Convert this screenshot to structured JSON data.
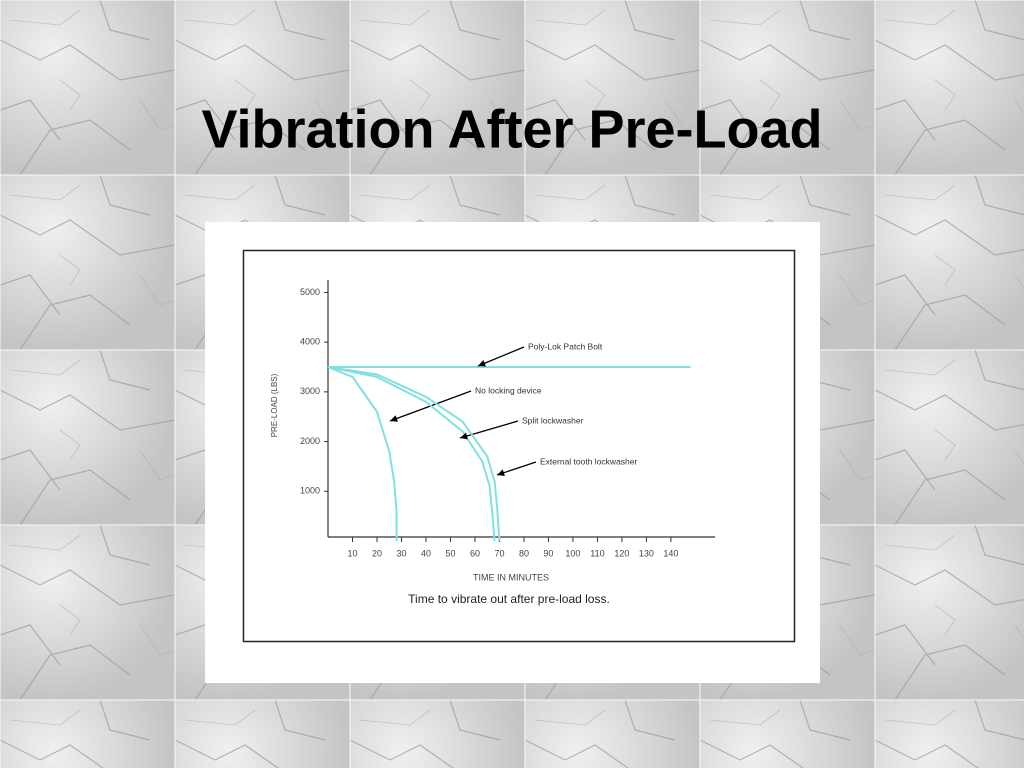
{
  "slide": {
    "title": "Vibration After Pre-Load"
  },
  "chart_data": {
    "type": "line",
    "ylabel": "PRE-LOAD (LBS)",
    "xlabel": "TIME IN MINUTES",
    "caption": "Time to vibrate out after pre-load loss.",
    "xlim": [
      0,
      158
    ],
    "xticks": [
      10,
      20,
      30,
      40,
      50,
      60,
      70,
      80,
      90,
      100,
      110,
      120,
      130,
      140
    ],
    "ylim": [
      0,
      5250
    ],
    "yticks": [
      1000,
      2000,
      3000,
      4000,
      5000
    ],
    "series": [
      {
        "name": "Poly-Lok Patch Bolt",
        "color": "#80e0e0",
        "x": [
          0,
          148
        ],
        "values": [
          3500,
          3500
        ]
      },
      {
        "name": "No locking device",
        "color": "#80e0e0",
        "x": [
          0,
          10,
          20,
          25,
          27,
          28,
          28
        ],
        "values": [
          3500,
          3300,
          2600,
          1800,
          1200,
          600,
          0
        ]
      },
      {
        "name": "Split lockwasher",
        "color": "#80e0e0",
        "x": [
          0,
          20,
          40,
          55,
          63,
          66,
          67,
          68
        ],
        "values": [
          3500,
          3300,
          2800,
          2200,
          1600,
          1100,
          600,
          0
        ]
      },
      {
        "name": "External tooth lockwasher",
        "color": "#80e0e0",
        "x": [
          0,
          20,
          40,
          55,
          65,
          68,
          69,
          70
        ],
        "values": [
          3500,
          3350,
          2900,
          2400,
          1700,
          1200,
          700,
          0
        ]
      }
    ]
  }
}
